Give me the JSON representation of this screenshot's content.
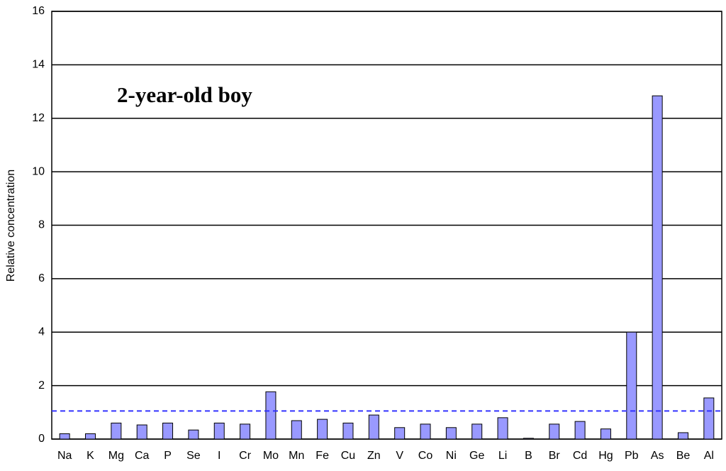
{
  "chart_data": {
    "type": "bar",
    "annotation": "2-year-old boy",
    "y_label": "Relative concentration",
    "categories": [
      "Na",
      "K",
      "Mg",
      "Ca",
      "P",
      "Se",
      "I",
      "Cr",
      "Mo",
      "Mn",
      "Fe",
      "Cu",
      "Zn",
      "V",
      "Co",
      "Ni",
      "Ge",
      "Li",
      "B",
      "Br",
      "Cd",
      "Hg",
      "Pb",
      "As",
      "Be",
      "Al"
    ],
    "values": [
      0.2,
      0.2,
      0.6,
      0.53,
      0.6,
      0.34,
      0.6,
      0.56,
      1.77,
      0.69,
      0.74,
      0.6,
      0.9,
      0.43,
      0.56,
      0.43,
      0.56,
      0.8,
      0.03,
      0.56,
      0.66,
      0.38,
      4.0,
      12.84,
      0.24,
      1.54
    ],
    "color": "#9999ff",
    "reference_line": 1.05,
    "reference_color": "#3333ff",
    "ylim": [
      0,
      16
    ],
    "yticks": [
      0,
      2,
      4,
      6,
      8,
      10,
      12,
      14,
      16
    ],
    "grid": true
  }
}
